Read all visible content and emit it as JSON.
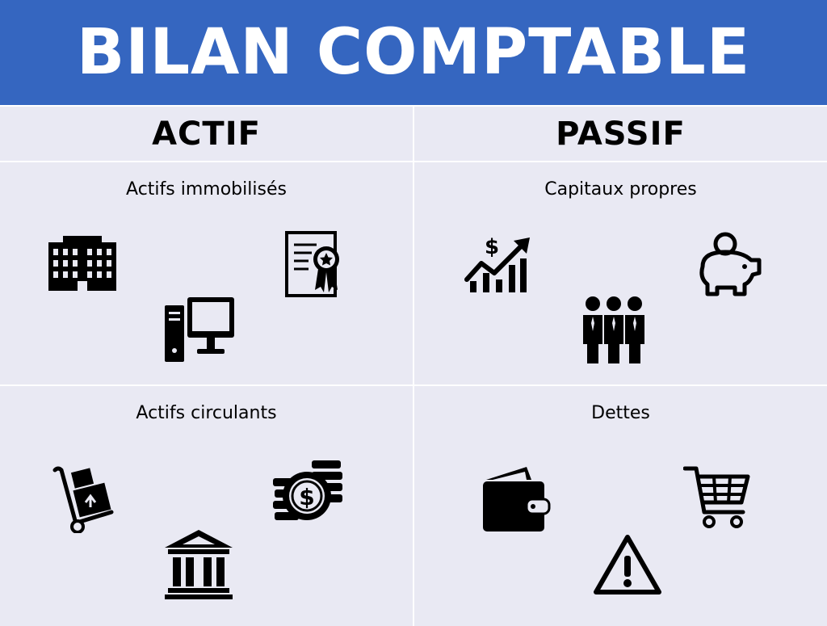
{
  "title": "BILAN COMPTABLE",
  "columns": {
    "left": "ACTIF",
    "right": "PASSIF"
  },
  "sections": {
    "actifs_immobilises": {
      "label": "Actifs immobilisés",
      "icons": [
        "office-building-icon",
        "certificate-icon",
        "desktop-computer-icon"
      ]
    },
    "capitaux_propres": {
      "label": "Capitaux propres",
      "icons": [
        "growth-chart-dollar-icon",
        "piggy-bank-icon",
        "business-team-icon"
      ]
    },
    "actifs_circulants": {
      "label": "Actifs circulants",
      "icons": [
        "hand-truck-boxes-icon",
        "coin-stack-dollar-icon",
        "bank-building-icon"
      ]
    },
    "dettes": {
      "label": "Dettes",
      "icons": [
        "wallet-icon",
        "shopping-cart-icon",
        "warning-triangle-icon"
      ]
    }
  },
  "colors": {
    "header_bg": "#3566c0",
    "page_bg": "#e9e9f3",
    "icon": "#000000"
  }
}
